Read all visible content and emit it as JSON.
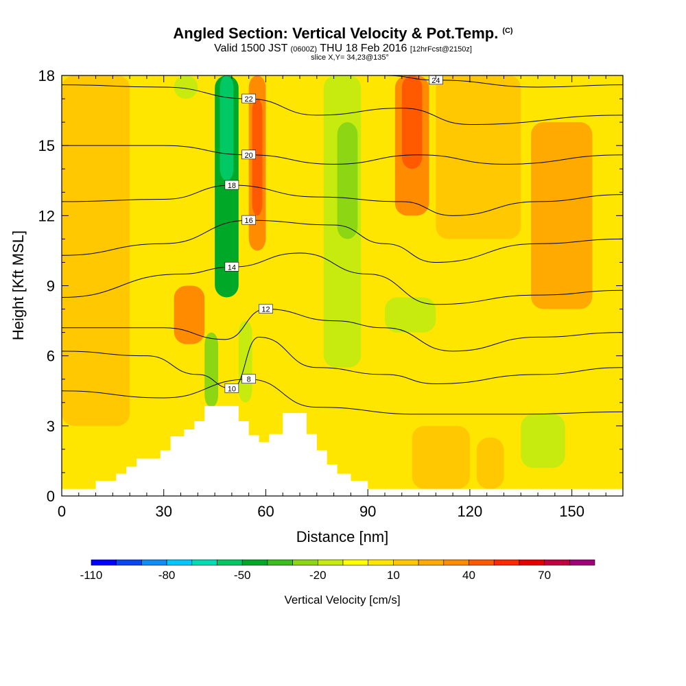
{
  "title": {
    "main": "Angled Section: Vertical Velocity & Pot.Temp.",
    "mark": "(C)",
    "valid_prefix": "Valid 1500 JST",
    "valid_utc": "(0600Z)",
    "valid_date": "THU 18 Feb 2016",
    "forecast": "[12hrFcst@2150z]",
    "slice": "slice X,Y= 34,23@135°"
  },
  "chart_data": {
    "type": "heatmap",
    "xlabel": "Distance [nm]",
    "ylabel": "Height [Kft MSL]",
    "xlim": [
      0,
      165
    ],
    "ylim": [
      0,
      18
    ],
    "x_ticks": [
      0,
      30,
      60,
      90,
      120,
      150
    ],
    "y_ticks": [
      0,
      3,
      6,
      9,
      12,
      15,
      18
    ],
    "colorbar": {
      "label": "Vertical Velocity [cm/s]",
      "ticks": [
        -110,
        -80,
        -50,
        -20,
        10,
        40,
        70
      ],
      "bins": [
        -110,
        -100,
        -90,
        -80,
        -70,
        -60,
        -50,
        -40,
        -30,
        -20,
        -10,
        0,
        10,
        20,
        30,
        40,
        50,
        60,
        70,
        80,
        90
      ],
      "colors": [
        "#0000ff",
        "#0a46f0",
        "#0f8cf5",
        "#00c8ff",
        "#00dcb4",
        "#00c864",
        "#00a828",
        "#3cbe1e",
        "#8cd614",
        "#c8eb0f",
        "#ffff00",
        "#ffe600",
        "#ffc800",
        "#ffaa00",
        "#ff8c00",
        "#ff5a00",
        "#ff2800",
        "#e60000",
        "#c00040",
        "#a00078"
      ]
    },
    "terrain": [
      [
        0,
        0.3
      ],
      [
        10,
        0.3
      ],
      [
        10,
        0.65
      ],
      [
        16,
        0.65
      ],
      [
        16,
        0.95
      ],
      [
        19,
        0.95
      ],
      [
        19,
        1.25
      ],
      [
        22,
        1.25
      ],
      [
        22,
        1.6
      ],
      [
        29,
        1.6
      ],
      [
        29,
        1.95
      ],
      [
        32,
        1.95
      ],
      [
        32,
        2.55
      ],
      [
        36,
        2.55
      ],
      [
        36,
        2.85
      ],
      [
        39,
        2.85
      ],
      [
        39,
        3.2
      ],
      [
        42,
        3.2
      ],
      [
        42,
        3.85
      ],
      [
        52,
        3.85
      ],
      [
        52,
        3.2
      ],
      [
        55,
        3.2
      ],
      [
        55,
        2.6
      ],
      [
        58,
        2.6
      ],
      [
        58,
        2.3
      ],
      [
        61,
        2.3
      ],
      [
        61,
        2.65
      ],
      [
        65,
        2.65
      ],
      [
        65,
        3.55
      ],
      [
        72,
        3.55
      ],
      [
        72,
        2.65
      ],
      [
        75,
        2.65
      ],
      [
        75,
        1.95
      ],
      [
        78,
        1.95
      ],
      [
        78,
        1.35
      ],
      [
        81,
        1.35
      ],
      [
        81,
        0.95
      ],
      [
        85,
        0.95
      ],
      [
        85,
        0.65
      ],
      [
        90,
        0.65
      ],
      [
        90,
        0.3
      ],
      [
        165,
        0.3
      ]
    ],
    "velocity_cells": [
      {
        "x": [
          45,
          52
        ],
        "y": [
          8.5,
          18
        ],
        "value": -45
      },
      {
        "x": [
          46.5,
          50.5
        ],
        "y": [
          13.5,
          18
        ],
        "value": -55
      },
      {
        "x": [
          42,
          46
        ],
        "y": [
          3.8,
          7
        ],
        "value": -25
      },
      {
        "x": [
          52,
          56
        ],
        "y": [
          4,
          7.5
        ],
        "value": -20
      },
      {
        "x": [
          55,
          60
        ],
        "y": [
          10.5,
          18
        ],
        "value": 35
      },
      {
        "x": [
          56,
          59
        ],
        "y": [
          12,
          17
        ],
        "value": 45
      },
      {
        "x": [
          77,
          88
        ],
        "y": [
          5.5,
          18
        ],
        "value": -15
      },
      {
        "x": [
          81,
          87
        ],
        "y": [
          11,
          16
        ],
        "value": -30
      },
      {
        "x": [
          95,
          110
        ],
        "y": [
          7,
          8.5
        ],
        "value": -18
      },
      {
        "x": [
          98,
          108
        ],
        "y": [
          12,
          18
        ],
        "value": 35
      },
      {
        "x": [
          100,
          106
        ],
        "y": [
          14,
          18
        ],
        "value": 48
      },
      {
        "x": [
          33,
          42
        ],
        "y": [
          6.5,
          9
        ],
        "value": 30
      },
      {
        "x": [
          138,
          156
        ],
        "y": [
          8,
          16
        ],
        "value": 22
      },
      {
        "x": [
          140,
          150
        ],
        "y": [
          9.5,
          14
        ],
        "value": 28
      },
      {
        "x": [
          0,
          20
        ],
        "y": [
          3,
          18
        ],
        "value": 15
      },
      {
        "x": [
          110,
          135
        ],
        "y": [
          11,
          18
        ],
        "value": 12
      },
      {
        "x": [
          135,
          148
        ],
        "y": [
          1.2,
          3.5
        ],
        "value": -15
      },
      {
        "x": [
          33,
          40
        ],
        "y": [
          17,
          18
        ],
        "value": -15
      },
      {
        "x": [
          103,
          120
        ],
        "y": [
          0.3,
          3
        ],
        "value": 15
      },
      {
        "x": [
          122,
          130
        ],
        "y": [
          0.3,
          2.5
        ],
        "value": 14
      }
    ],
    "isentropes": [
      {
        "label": "8",
        "points": [
          [
            0,
            4.5
          ],
          [
            30,
            4.2
          ],
          [
            55,
            5
          ],
          [
            75,
            3.8
          ],
          [
            105,
            3.5
          ],
          [
            135,
            3.5
          ],
          [
            165,
            3.6
          ]
        ]
      },
      {
        "label": "10",
        "points": [
          [
            0,
            6.2
          ],
          [
            25,
            6
          ],
          [
            40,
            5.2
          ],
          [
            50,
            4.6
          ],
          [
            58,
            6.8
          ],
          [
            75,
            5.5
          ],
          [
            95,
            5.2
          ],
          [
            110,
            4.8
          ],
          [
            140,
            5.2
          ],
          [
            165,
            5.5
          ]
        ]
      },
      {
        "label": "12",
        "points": [
          [
            0,
            7.2
          ],
          [
            30,
            7.2
          ],
          [
            48,
            6.7
          ],
          [
            60,
            8
          ],
          [
            80,
            7.5
          ],
          [
            95,
            7.2
          ],
          [
            115,
            6.2
          ],
          [
            140,
            6.8
          ],
          [
            165,
            7
          ]
        ]
      },
      {
        "label": "14",
        "points": [
          [
            0,
            8.5
          ],
          [
            35,
            9.5
          ],
          [
            50,
            9.8
          ],
          [
            70,
            10.4
          ],
          [
            90,
            9.5
          ],
          [
            110,
            8.2
          ],
          [
            140,
            8.6
          ],
          [
            165,
            8.8
          ]
        ]
      },
      {
        "label": "16",
        "points": [
          [
            0,
            10.3
          ],
          [
            30,
            10.8
          ],
          [
            55,
            11.8
          ],
          [
            80,
            11.6
          ],
          [
            95,
            10.8
          ],
          [
            110,
            10
          ],
          [
            140,
            10.8
          ],
          [
            165,
            11
          ]
        ]
      },
      {
        "label": "18",
        "points": [
          [
            0,
            12.6
          ],
          [
            30,
            12.7
          ],
          [
            50,
            13.3
          ],
          [
            75,
            12.8
          ],
          [
            100,
            12.6
          ],
          [
            115,
            12
          ],
          [
            140,
            12.6
          ],
          [
            165,
            12.9
          ]
        ]
      },
      {
        "label": "20",
        "points": [
          [
            0,
            15
          ],
          [
            30,
            15
          ],
          [
            55,
            14.6
          ],
          [
            80,
            14.2
          ],
          [
            105,
            14.6
          ],
          [
            130,
            14.2
          ],
          [
            165,
            14.6
          ]
        ]
      },
      {
        "label": "22",
        "points": [
          [
            0,
            17.6
          ],
          [
            30,
            17.5
          ],
          [
            55,
            17
          ],
          [
            75,
            16.3
          ],
          [
            100,
            16.6
          ],
          [
            120,
            15.9
          ],
          [
            165,
            16.3
          ]
        ]
      },
      {
        "label": "24",
        "points": [
          [
            95,
            18
          ],
          [
            110,
            17.8
          ],
          [
            140,
            17.5
          ],
          [
            165,
            17.6
          ]
        ]
      }
    ]
  }
}
